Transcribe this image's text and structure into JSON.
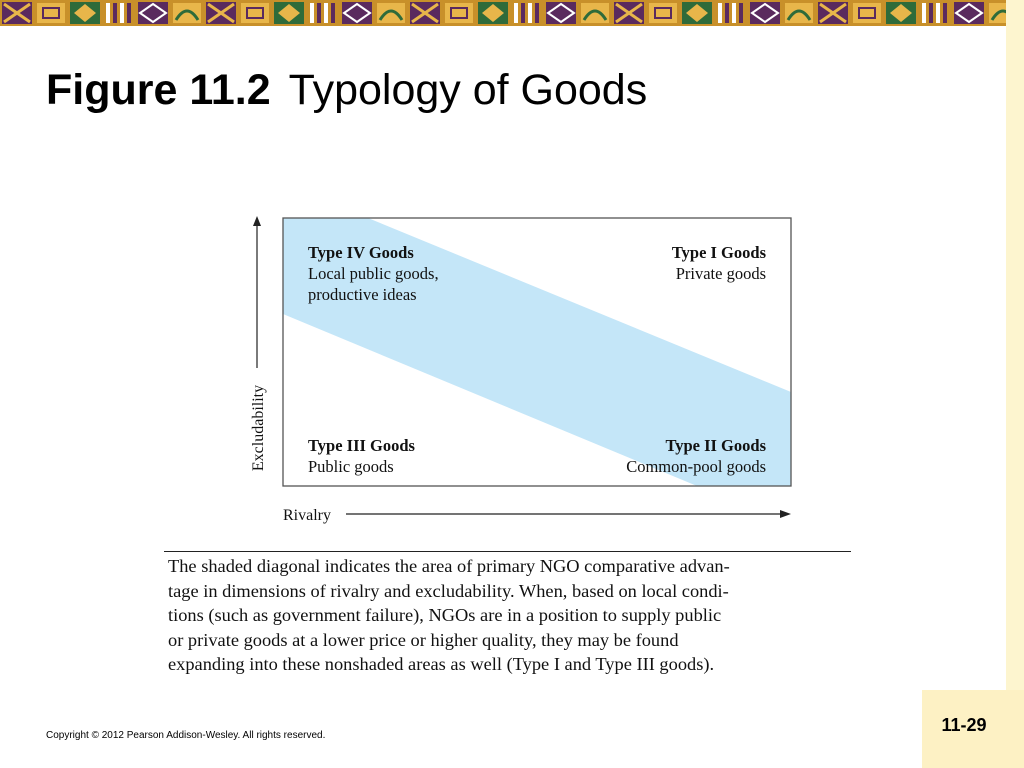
{
  "slide": {
    "title_bold": "Figure 11.2",
    "title_rest": "Typology of Goods",
    "page_number": "11-29",
    "copyright": "Copyright © 2012 Pearson Addison-Wesley. All rights reserved."
  },
  "figure": {
    "y_axis_label": "Excludability",
    "x_axis_label": "Rivalry",
    "quadrants": {
      "type4": {
        "title": "Type IV Goods",
        "line1": "Local public goods,",
        "line2": "productive ideas"
      },
      "type1": {
        "title": "Type I Goods",
        "line1": "Private goods"
      },
      "type3": {
        "title": "Type III Goods",
        "line1": "Public goods"
      },
      "type2": {
        "title": "Type II Goods",
        "line1": "Common-pool goods"
      }
    },
    "band_color": "#c4e6f8",
    "caption_lines": [
      "The shaded diagonal indicates the area of primary NGO comparative advan-",
      "tage in dimensions of rivalry and excludability. When, based on local condi-",
      "tions (such as government failure), NGOs are in a position to supply public",
      "or private goods at a lower price or higher quality, they may be found",
      "expanding into these nonshaded areas as well (Type I and Type III goods)."
    ]
  },
  "theme": {
    "banner_colors": [
      "#c8902a",
      "#5a2a5e",
      "#e8b64a",
      "#2f6b3a",
      "#ffffff"
    ],
    "sidebar_color": "#fdf5cf"
  }
}
